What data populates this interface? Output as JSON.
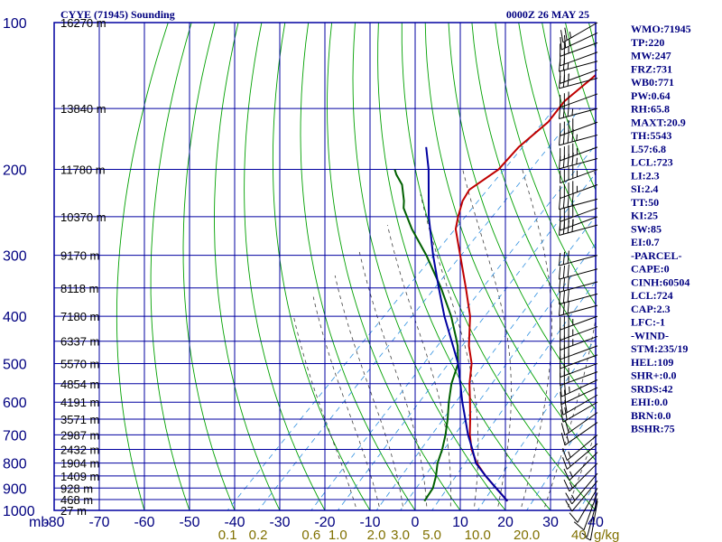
{
  "chart_data": {
    "type": "line",
    "title": "CYYE (71945) Sounding",
    "subtitle": "0000Z 26 MAY 25",
    "xlabel": "",
    "ylabel": "mb",
    "x_units": "°C",
    "y_units": "mb",
    "xlim": [
      -80,
      40
    ],
    "ylim": [
      1000,
      100
    ],
    "y_scale": "log",
    "skew": "temperature isotherms skewed 45°",
    "grid": true,
    "pressure_ticks": [
      "100",
      "200",
      "300",
      "400",
      "500",
      "600",
      "700",
      "800",
      "900",
      "1000"
    ],
    "temperature_ticks": [
      "-80",
      "-70",
      "-60",
      "-50",
      "-40",
      "-30",
      "-20",
      "-10",
      "0",
      "10",
      "20",
      "30",
      "40"
    ],
    "axis_corner_label": "mb",
    "mixing_ratio_ticks": [
      "0.1",
      "0.2",
      "0.6",
      "1.0",
      "2.0",
      "3.0",
      "5.0",
      "10.0",
      "20.0",
      "40"
    ],
    "mixing_ratio_unit": "g/kg",
    "height_labels": [
      {
        "p": 100,
        "label": "16270 m"
      },
      {
        "p": 150,
        "label": "13840 m"
      },
      {
        "p": 200,
        "label": "11780 m"
      },
      {
        "p": 250,
        "label": "10370 m"
      },
      {
        "p": 300,
        "label": "9170 m"
      },
      {
        "p": 350,
        "label": "8118 m"
      },
      {
        "p": 400,
        "label": "7180 m"
      },
      {
        "p": 450,
        "label": "6337 m"
      },
      {
        "p": 500,
        "label": "5570 m"
      },
      {
        "p": 550,
        "label": "4854 m"
      },
      {
        "p": 600,
        "label": "4191 m"
      },
      {
        "p": 650,
        "label": "3571 m"
      },
      {
        "p": 700,
        "label": "2987 m"
      },
      {
        "p": 750,
        "label": "2432 m"
      },
      {
        "p": 800,
        "label": "1904 m"
      },
      {
        "p": 850,
        "label": "1409 m"
      },
      {
        "p": 900,
        "label": "928 m"
      },
      {
        "p": 950,
        "label": "468 m"
      },
      {
        "p": 1000,
        "label": "27 m"
      }
    ],
    "series": [
      {
        "role": "temperature",
        "color": "#c00000",
        "points": [
          [
            957,
            18.4
          ],
          [
            900,
            13.0
          ],
          [
            850,
            8.0
          ],
          [
            800,
            3.2
          ],
          [
            750,
            -1.0
          ],
          [
            700,
            -4.6
          ],
          [
            650,
            -8.0
          ],
          [
            600,
            -11.8
          ],
          [
            550,
            -16.0
          ],
          [
            500,
            -20.0
          ],
          [
            460,
            -24.5
          ],
          [
            440,
            -26.5
          ],
          [
            400,
            -30.8
          ],
          [
            350,
            -38.0
          ],
          [
            300,
            -46.5
          ],
          [
            265,
            -53.3
          ],
          [
            250,
            -55.5
          ],
          [
            232,
            -58.0
          ],
          [
            220,
            -59.0
          ],
          [
            200,
            -57.0
          ],
          [
            180,
            -57.5
          ],
          [
            160,
            -56.5
          ],
          [
            145,
            -57.5
          ],
          [
            130,
            -56.5
          ],
          [
            115,
            -55.5
          ],
          [
            105,
            -55.0
          ],
          [
            100,
            -56.0
          ]
        ]
      },
      {
        "role": "dewpoint",
        "color": "#006000",
        "points": [
          [
            957,
            0.0
          ],
          [
            900,
            -1.0
          ],
          [
            850,
            -3.0
          ],
          [
            800,
            -5.5
          ],
          [
            750,
            -7.5
          ],
          [
            700,
            -10.0
          ],
          [
            650,
            -13.0
          ],
          [
            600,
            -16.5
          ],
          [
            550,
            -20.0
          ],
          [
            500,
            -23.0
          ],
          [
            460,
            -27.0
          ],
          [
            440,
            -29.5
          ],
          [
            400,
            -35.0
          ],
          [
            350,
            -43.5
          ],
          [
            300,
            -54.0
          ],
          [
            265,
            -63.0
          ],
          [
            240,
            -69.5
          ],
          [
            232,
            -71.0
          ],
          [
            215,
            -75.0
          ],
          [
            205,
            -78.5
          ],
          [
            200,
            -80.0
          ]
        ]
      },
      {
        "role": "parcel",
        "color": "#0000a0",
        "points": [
          [
            957,
            18.4
          ],
          [
            900,
            13.0
          ],
          [
            850,
            8.0
          ],
          [
            800,
            3.0
          ],
          [
            750,
            -0.8
          ],
          [
            700,
            -5.0
          ],
          [
            600,
            -13.5
          ],
          [
            500,
            -23.0
          ],
          [
            400,
            -36.5
          ],
          [
            350,
            -44.0
          ],
          [
            300,
            -52.5
          ],
          [
            250,
            -62.0
          ],
          [
            200,
            -72.5
          ],
          [
            180,
            -78.0
          ]
        ]
      }
    ],
    "wind_barbs": [
      {
        "p": 100,
        "dir": 240,
        "spd": 25
      },
      {
        "p": 105,
        "dir": 245,
        "spd": 25
      },
      {
        "p": 110,
        "dir": 250,
        "spd": 25
      },
      {
        "p": 115,
        "dir": 250,
        "spd": 20
      },
      {
        "p": 120,
        "dir": 255,
        "spd": 25
      },
      {
        "p": 125,
        "dir": 250,
        "spd": 25
      },
      {
        "p": 130,
        "dir": 255,
        "spd": 30
      },
      {
        "p": 140,
        "dir": 250,
        "spd": 30
      },
      {
        "p": 150,
        "dir": 255,
        "spd": 35
      },
      {
        "p": 160,
        "dir": 250,
        "spd": 40
      },
      {
        "p": 170,
        "dir": 255,
        "spd": 45
      },
      {
        "p": 180,
        "dir": 250,
        "spd": 45
      },
      {
        "p": 190,
        "dir": 255,
        "spd": 45
      },
      {
        "p": 200,
        "dir": 250,
        "spd": 45
      },
      {
        "p": 215,
        "dir": 250,
        "spd": 45
      },
      {
        "p": 230,
        "dir": 255,
        "spd": 40
      },
      {
        "p": 240,
        "dir": 250,
        "spd": 40
      },
      {
        "p": 250,
        "dir": 250,
        "spd": 35
      },
      {
        "p": 260,
        "dir": 255,
        "spd": 40
      },
      {
        "p": 300,
        "dir": 255,
        "spd": 30
      },
      {
        "p": 320,
        "dir": 255,
        "spd": 30
      },
      {
        "p": 340,
        "dir": 255,
        "spd": 30
      },
      {
        "p": 360,
        "dir": 255,
        "spd": 30
      },
      {
        "p": 380,
        "dir": 255,
        "spd": 30
      },
      {
        "p": 400,
        "dir": 250,
        "spd": 35
      },
      {
        "p": 420,
        "dir": 250,
        "spd": 35
      },
      {
        "p": 440,
        "dir": 250,
        "spd": 35
      },
      {
        "p": 460,
        "dir": 250,
        "spd": 30
      },
      {
        "p": 480,
        "dir": 250,
        "spd": 30
      },
      {
        "p": 500,
        "dir": 250,
        "spd": 25
      },
      {
        "p": 520,
        "dir": 250,
        "spd": 25
      },
      {
        "p": 540,
        "dir": 245,
        "spd": 25
      },
      {
        "p": 560,
        "dir": 245,
        "spd": 20
      },
      {
        "p": 580,
        "dir": 240,
        "spd": 20
      },
      {
        "p": 600,
        "dir": 240,
        "spd": 20
      },
      {
        "p": 630,
        "dir": 235,
        "spd": 20
      },
      {
        "p": 660,
        "dir": 235,
        "spd": 15
      },
      {
        "p": 700,
        "dir": 230,
        "spd": 15
      },
      {
        "p": 730,
        "dir": 230,
        "spd": 15
      },
      {
        "p": 760,
        "dir": 225,
        "spd": 15
      },
      {
        "p": 800,
        "dir": 225,
        "spd": 15
      },
      {
        "p": 840,
        "dir": 220,
        "spd": 15
      },
      {
        "p": 870,
        "dir": 220,
        "spd": 10
      },
      {
        "p": 900,
        "dir": 210,
        "spd": 10
      },
      {
        "p": 920,
        "dir": 200,
        "spd": 10
      },
      {
        "p": 945,
        "dir": 195,
        "spd": 5
      },
      {
        "p": 957,
        "dir": 190,
        "spd": 5
      }
    ],
    "indices": [
      "WMO:71945",
      "TP:220",
      "MW:247",
      "FRZ:731",
      "WB0:771",
      "PW:0.64",
      "RH:65.8",
      "MAXT:20.9",
      "TH:5543",
      "L57:6.8",
      "LCL:723",
      "LI:2.3",
      "SI:2.4",
      "TT:50",
      "KI:25",
      "SW:85",
      "EI:0.7",
      "-PARCEL-",
      "CAPE:0",
      "CINH:60504",
      "LCL:724",
      "CAP:2.3",
      "LFC:-1",
      "-WIND-",
      "STM:235/19",
      "HEL:109",
      "SHR+:0.0",
      "SRDS:42",
      "EHI:0.0",
      "BRN:0.0",
      "BSHR:75"
    ],
    "colors": {
      "grid": "#0000a0",
      "dry_adiabats": "#00a000",
      "moist_adiabats": "#404040",
      "mixing_ratio": "#3090e0",
      "text": "#000080",
      "mixing_label": "#807000"
    }
  }
}
